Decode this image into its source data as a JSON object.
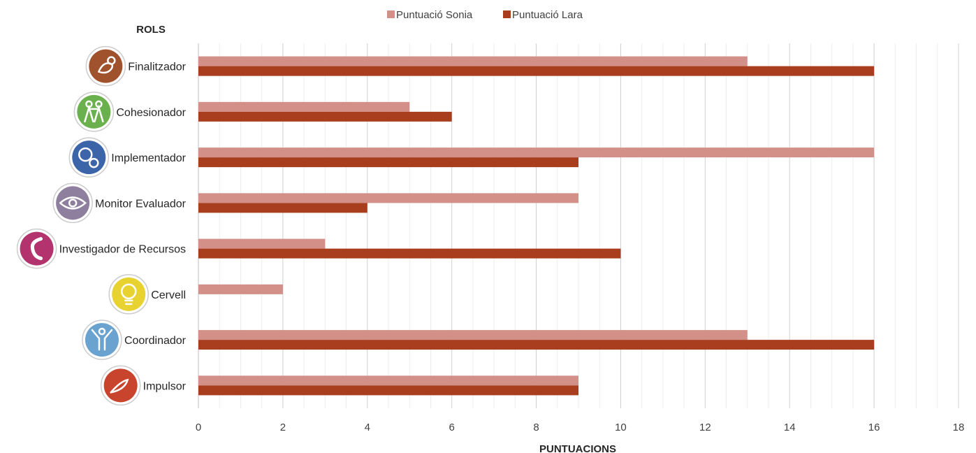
{
  "chart_data": {
    "type": "bar",
    "orientation": "horizontal",
    "categories": [
      "Finalitzador",
      "Cohesionador",
      "Implementador",
      "Monitor Evaluador",
      "Investigador de Recursos",
      "Cervell",
      "Coordinador",
      "Impulsor"
    ],
    "category_icons": [
      "finisher-hand-icon",
      "team-people-icon",
      "gears-icon",
      "eye-icon",
      "phone-icon",
      "lightbulb-icon",
      "person-arms-up-icon",
      "whip-icon"
    ],
    "category_icon_colors": [
      "#a0522d",
      "#6ab04c",
      "#3c64a8",
      "#8e7f9e",
      "#b3336e",
      "#e8d230",
      "#6aa2d0",
      "#c8442c"
    ],
    "series": [
      {
        "name": "Puntuació Sonia",
        "color": "#d39088",
        "values": [
          13,
          5,
          16,
          9,
          3,
          2,
          13,
          9
        ]
      },
      {
        "name": "Puntuació Lara",
        "color": "#a83e1e",
        "values": [
          16,
          6,
          9,
          4,
          10,
          0,
          16,
          9
        ]
      }
    ],
    "xlabel": "PUNTUACIONS",
    "ylabel": "ROLS",
    "xlim": [
      0,
      18
    ],
    "xticks": [
      "0",
      "2",
      "4",
      "6",
      "8",
      "10",
      "12",
      "14",
      "16",
      "18"
    ],
    "grid": true,
    "legend_position": "top"
  }
}
